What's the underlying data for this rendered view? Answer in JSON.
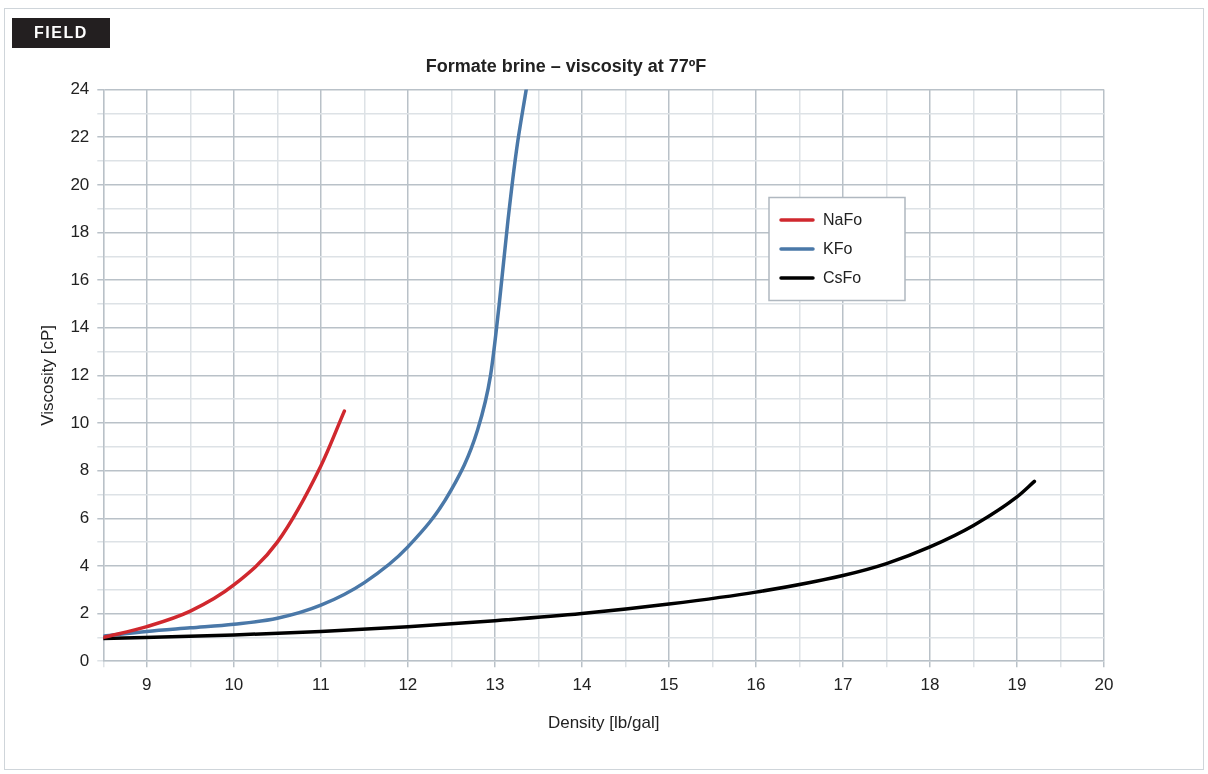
{
  "chart_data": {
    "type": "line",
    "title": "Formate brine – viscosity at 77ºF",
    "xlabel": "Density [lb/gal]",
    "ylabel": "Viscosity [cP]",
    "annotations": [
      "FIELD"
    ],
    "xlim": [
      8.5,
      20
    ],
    "ylim": [
      0,
      24
    ],
    "xticks": [
      {
        "value": 8.5,
        "label": null
      },
      9,
      {
        "value": 9.5,
        "label": null
      },
      10,
      {
        "value": 10.5,
        "label": null
      },
      11,
      {
        "value": 11.5,
        "label": null
      },
      12,
      {
        "value": 12.5,
        "label": null
      },
      13,
      {
        "value": 13.5,
        "label": null
      },
      14,
      {
        "value": 14.5,
        "label": null
      },
      15,
      {
        "value": 15.5,
        "label": null
      },
      16,
      {
        "value": 16.5,
        "label": null
      },
      17,
      {
        "value": 17.5,
        "label": null
      },
      18,
      {
        "value": 18.5,
        "label": null
      },
      19,
      {
        "value": 19.5,
        "label": null
      },
      20
    ],
    "yticks": [
      0,
      {
        "value": 1,
        "label": null
      },
      2,
      {
        "value": 3,
        "label": null
      },
      4,
      {
        "value": 5,
        "label": null
      },
      6,
      {
        "value": 7,
        "label": null
      },
      8,
      {
        "value": 9,
        "label": null
      },
      10,
      {
        "value": 11,
        "label": null
      },
      12,
      {
        "value": 13,
        "label": null
      },
      14,
      {
        "value": 15,
        "label": null
      },
      16,
      {
        "value": 17,
        "label": null
      },
      18,
      {
        "value": 19,
        "label": null
      },
      20,
      {
        "value": 21,
        "label": null
      },
      22,
      {
        "value": 23,
        "label": null
      },
      24
    ],
    "grid": true,
    "legend": "top right",
    "marker": "none",
    "line_style": "solid",
    "series": [
      {
        "name": "NaFo",
        "color": "#d0282e",
        "x": [
          8.5,
          9,
          9.5,
          10,
          10.5,
          11,
          11.27
        ],
        "values": [
          1.0,
          1.45,
          2.1,
          3.2,
          5.0,
          8.2,
          10.5
        ]
      },
      {
        "name": "KFo",
        "color": "#4a78a8",
        "x": [
          8.5,
          9,
          9.5,
          10,
          10.5,
          11,
          11.5,
          12,
          12.5,
          12.8,
          12.95,
          13.05,
          13.15,
          13.25,
          13.36
        ],
        "values": [
          1.05,
          1.25,
          1.4,
          1.55,
          1.8,
          2.35,
          3.3,
          4.8,
          7.2,
          9.7,
          12,
          15,
          18.5,
          21.5,
          24
        ]
      },
      {
        "name": "CsFo",
        "color": "#000000",
        "x": [
          8.5,
          10,
          11,
          12,
          13,
          14,
          15,
          16,
          17,
          17.5,
          18,
          18.5,
          19,
          19.2
        ],
        "values": [
          0.95,
          1.1,
          1.25,
          1.45,
          1.7,
          2.0,
          2.4,
          2.9,
          3.6,
          4.1,
          4.8,
          5.7,
          6.9,
          7.55
        ]
      }
    ]
  }
}
